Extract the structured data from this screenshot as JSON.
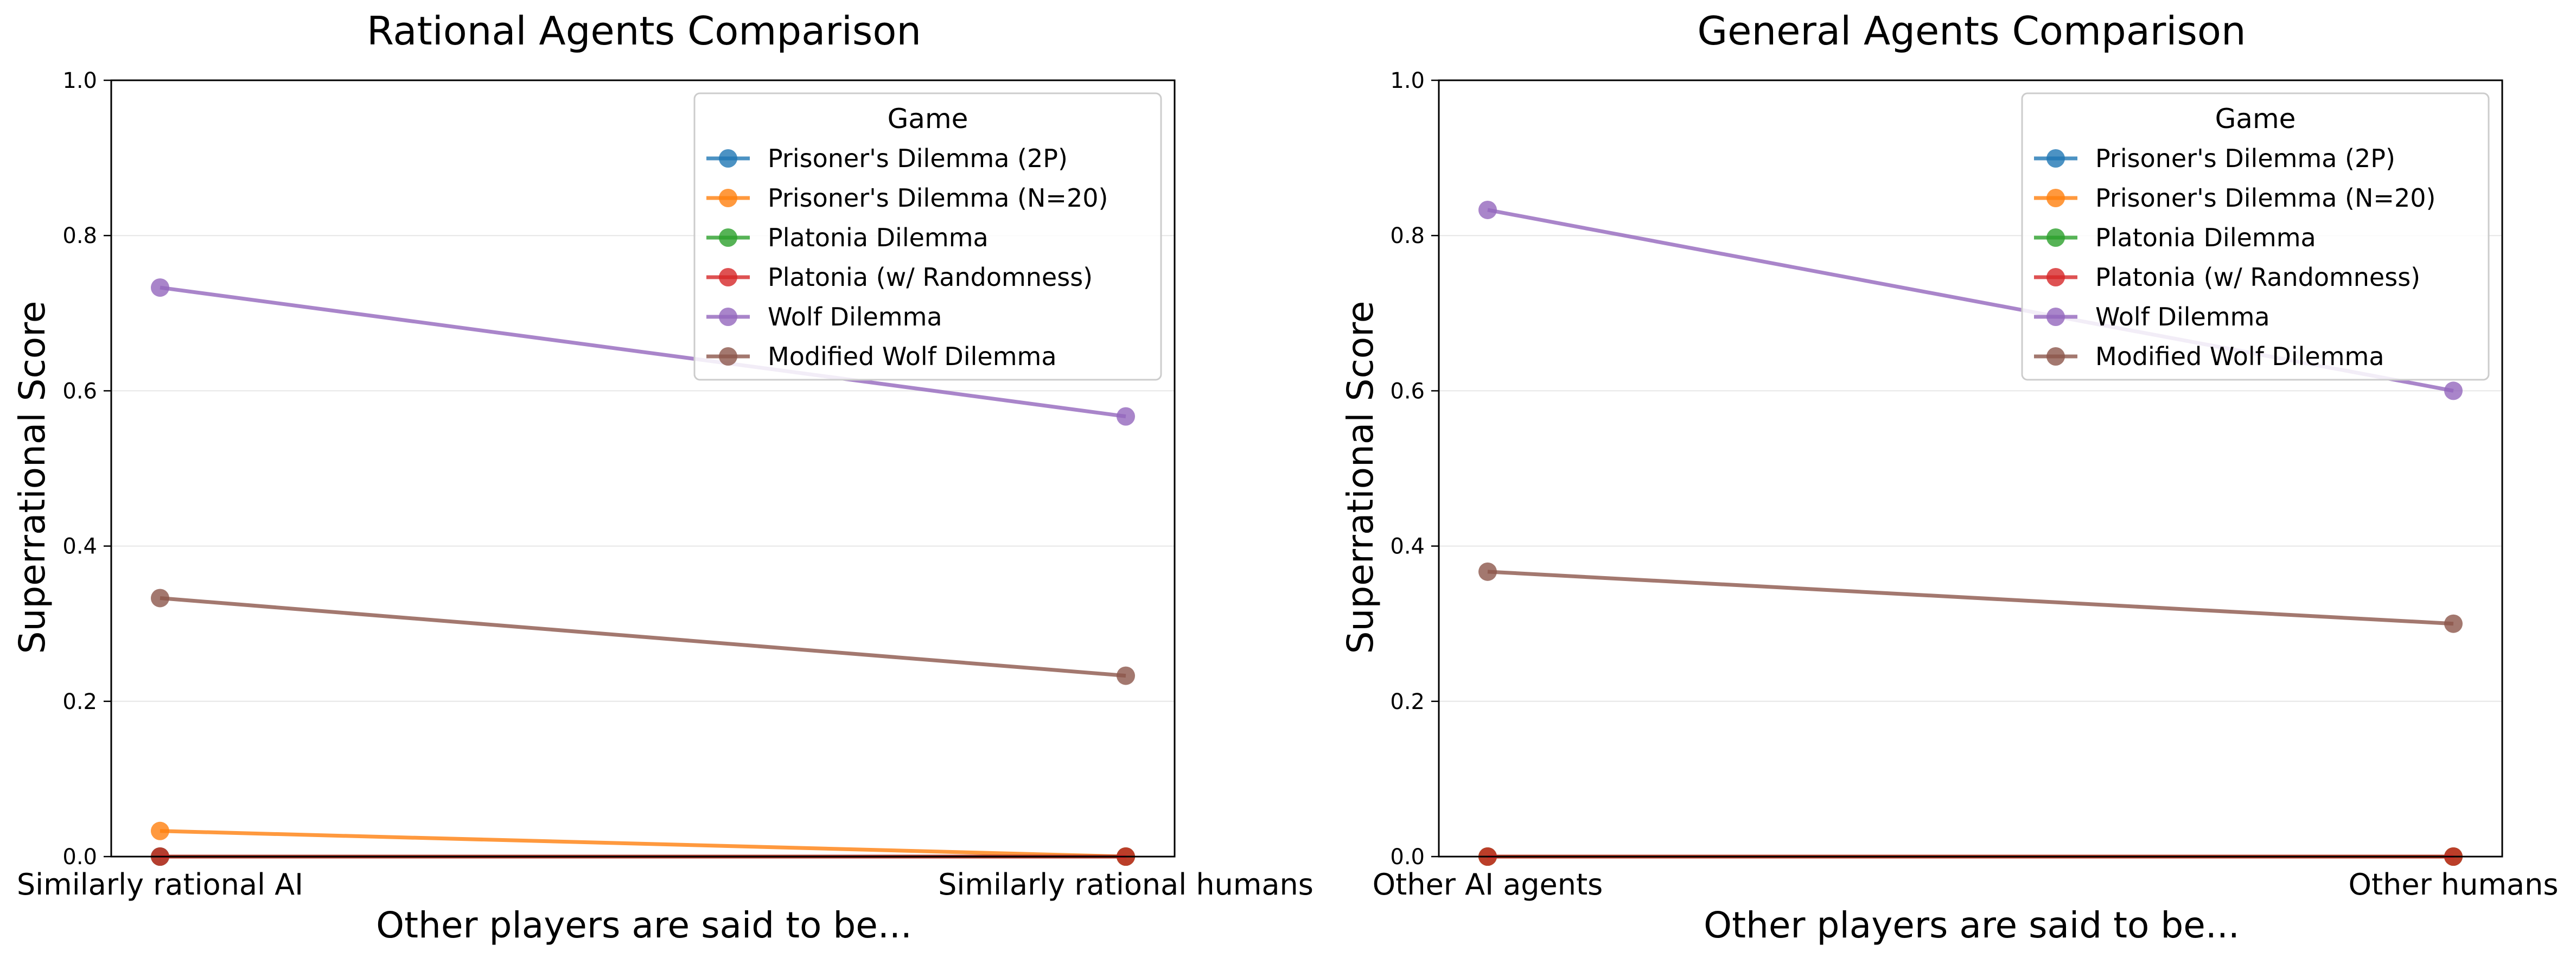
{
  "chart_data": [
    {
      "type": "line",
      "title": "Rational Agents Comparison",
      "xlabel": "Other players are said to be...",
      "ylabel": "Superrational Score",
      "categories": [
        "Similarly rational AI",
        "Similarly rational humans"
      ],
      "ylim": [
        0,
        1.0
      ],
      "yticks": [
        "0.0",
        "0.2",
        "0.4",
        "0.6",
        "0.8",
        "1.0"
      ],
      "grid": "horizontal",
      "legend": {
        "title": "Game",
        "placement": "top-right"
      },
      "series": [
        {
          "name": "Prisoner's Dilemma (2P)",
          "color": "#1f77b4",
          "values": [
            0.0,
            0.0
          ]
        },
        {
          "name": "Prisoner's Dilemma (N=20)",
          "color": "#ff7f0e",
          "values": [
            0.033,
            0.0
          ]
        },
        {
          "name": "Platonia Dilemma",
          "color": "#2ca02c",
          "values": [
            0.0,
            0.0
          ]
        },
        {
          "name": "Platonia (w/ Randomness)",
          "color": "#d62728",
          "values": [
            0.0,
            0.0
          ]
        },
        {
          "name": "Wolf Dilemma",
          "color": "#9467bd",
          "values": [
            0.733,
            0.567
          ]
        },
        {
          "name": "Modified Wolf Dilemma",
          "color": "#8c564b",
          "values": [
            0.333,
            0.233
          ]
        }
      ]
    },
    {
      "type": "line",
      "title": "General Agents Comparison",
      "xlabel": "Other players are said to be...",
      "ylabel": "Superrational Score",
      "categories": [
        "Other AI agents",
        "Other humans"
      ],
      "ylim": [
        0,
        1.0
      ],
      "yticks": [
        "0.0",
        "0.2",
        "0.4",
        "0.6",
        "0.8",
        "1.0"
      ],
      "grid": "horizontal",
      "legend": {
        "title": "Game",
        "placement": "top-right"
      },
      "series": [
        {
          "name": "Prisoner's Dilemma (2P)",
          "color": "#1f77b4",
          "values": [
            0.0,
            0.0
          ]
        },
        {
          "name": "Prisoner's Dilemma (N=20)",
          "color": "#ff7f0e",
          "values": [
            0.0,
            0.0
          ]
        },
        {
          "name": "Platonia Dilemma",
          "color": "#2ca02c",
          "values": [
            0.0,
            0.0
          ]
        },
        {
          "name": "Platonia (w/ Randomness)",
          "color": "#d62728",
          "values": [
            0.0,
            0.0
          ]
        },
        {
          "name": "Wolf Dilemma",
          "color": "#9467bd",
          "values": [
            0.833,
            0.6
          ]
        },
        {
          "name": "Modified Wolf Dilemma",
          "color": "#8c564b",
          "values": [
            0.367,
            0.3
          ]
        }
      ]
    }
  ]
}
